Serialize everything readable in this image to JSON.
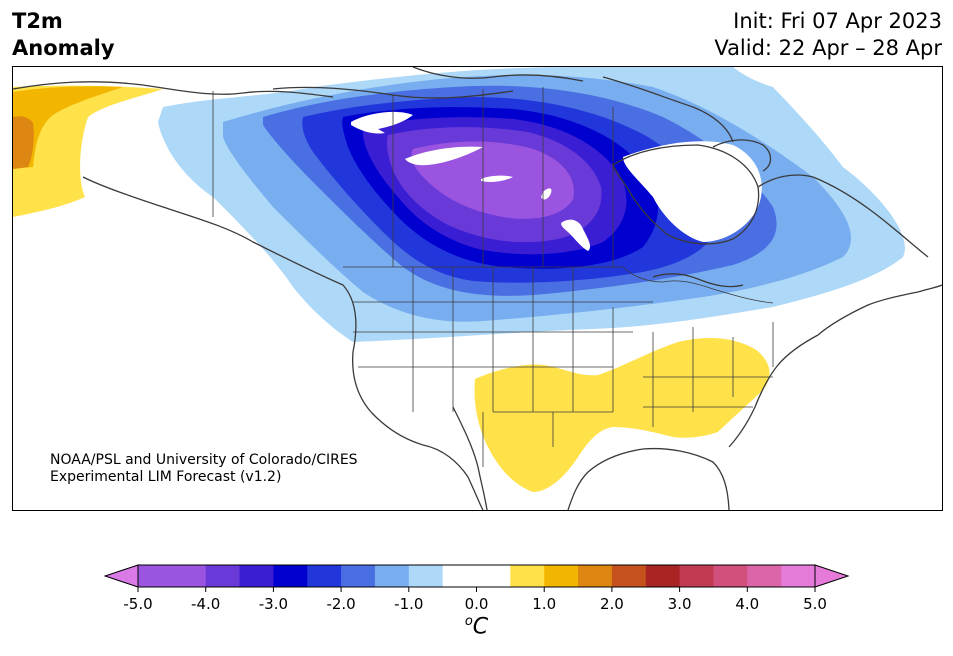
{
  "header": {
    "variable_line1": "T2m",
    "variable_line2": "Anomaly",
    "init": "Init: Fri 07 Apr 2023",
    "valid": "Valid: 22 Apr – 28 Apr"
  },
  "map": {
    "credit_line1": "NOAA/PSL and University of Colorado/CIRES",
    "credit_line2": "Experimental LIM Forecast (v1.2)"
  },
  "colorbar": {
    "tick_labels": [
      "-5.0",
      "-4.0",
      "-3.0",
      "-2.0",
      "-1.0",
      "0.0",
      "1.0",
      "2.0",
      "3.0",
      "4.0",
      "5.0"
    ],
    "units_base": "C",
    "units_sup": "o",
    "bins": [
      {
        "from": -5.0,
        "to": -4.5,
        "color": "#9b54e0"
      },
      {
        "from": -4.5,
        "to": -4.0,
        "color": "#9b54e0"
      },
      {
        "from": -4.0,
        "to": -3.5,
        "color": "#6a3ad9"
      },
      {
        "from": -3.5,
        "to": -3.0,
        "color": "#3a1ed3"
      },
      {
        "from": -3.0,
        "to": -2.5,
        "color": "#0000cf"
      },
      {
        "from": -2.5,
        "to": -2.0,
        "color": "#2237db"
      },
      {
        "from": -2.0,
        "to": -1.5,
        "color": "#4a6fe3"
      },
      {
        "from": -1.5,
        "to": -1.0,
        "color": "#78aef0"
      },
      {
        "from": -1.0,
        "to": -0.5,
        "color": "#aed8f8"
      },
      {
        "from": -0.5,
        "to": 0.0,
        "color": "#ffffff"
      },
      {
        "from": 0.0,
        "to": 0.5,
        "color": "#ffffff"
      },
      {
        "from": 0.5,
        "to": 1.0,
        "color": "#ffe24a"
      },
      {
        "from": 1.0,
        "to": 1.5,
        "color": "#f2b600"
      },
      {
        "from": 1.5,
        "to": 2.0,
        "color": "#de8612"
      },
      {
        "from": 2.0,
        "to": 2.5,
        "color": "#c5521c"
      },
      {
        "from": 2.5,
        "to": 3.0,
        "color": "#aa2424"
      },
      {
        "from": 3.0,
        "to": 3.5,
        "color": "#c23a52"
      },
      {
        "from": 3.5,
        "to": 4.0,
        "color": "#d2517c"
      },
      {
        "from": 4.0,
        "to": 4.5,
        "color": "#dc64a8"
      },
      {
        "from": 4.5,
        "to": 5.0,
        "color": "#e57ad8"
      }
    ],
    "under_color": "#d97ae6",
    "over_color": "#e57ad8"
  }
}
